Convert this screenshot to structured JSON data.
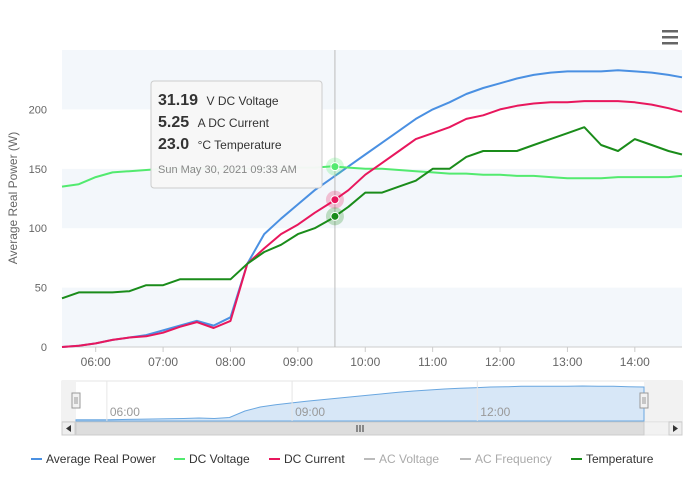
{
  "chart_data": {
    "type": "line",
    "ylabel": "Average Real Power (W)",
    "ylim": [
      0,
      250
    ],
    "y_ticks": [
      "0",
      "50",
      "100",
      "150",
      "200"
    ],
    "x_tick_labels": [
      "06:00",
      "07:00",
      "08:00",
      "09:00",
      "10:00",
      "11:00",
      "12:00",
      "13:00",
      "14:00"
    ],
    "x_range_hours": [
      5.5,
      14.7
    ],
    "grid": "horizontal bands",
    "legend_placement": "bottom",
    "series": [
      {
        "name": "Average Real Power",
        "color": "#4a90e2",
        "active": true,
        "x": [
          5.5,
          5.75,
          6.0,
          6.25,
          6.5,
          6.75,
          7.0,
          7.25,
          7.5,
          7.75,
          8.0,
          8.25,
          8.5,
          8.75,
          9.0,
          9.25,
          9.5,
          9.75,
          10.0,
          10.25,
          10.5,
          10.75,
          11.0,
          11.25,
          11.5,
          11.75,
          12.0,
          12.25,
          12.5,
          12.75,
          13.0,
          13.25,
          13.5,
          13.75,
          14.0,
          14.25,
          14.5,
          14.7
        ],
        "y": [
          0,
          1,
          3,
          6,
          8,
          10,
          14,
          18,
          22,
          18,
          25,
          70,
          95,
          108,
          120,
          132,
          142,
          152,
          162,
          172,
          182,
          192,
          200,
          206,
          213,
          218,
          222,
          226,
          229,
          231,
          232,
          232,
          232,
          233,
          232,
          231,
          229,
          227
        ]
      },
      {
        "name": "DC Voltage",
        "color": "#52ea6f",
        "active": true,
        "x": [
          5.5,
          5.75,
          6.0,
          6.25,
          6.5,
          6.75,
          7.0,
          7.25,
          7.5,
          7.75,
          8.0,
          8.25,
          8.5,
          8.75,
          9.0,
          9.25,
          9.5,
          9.75,
          10.0,
          10.25,
          10.5,
          10.75,
          11.0,
          11.25,
          11.5,
          11.75,
          12.0,
          12.25,
          12.5,
          12.75,
          13.0,
          13.25,
          13.5,
          13.75,
          14.0,
          14.25,
          14.5,
          14.7
        ],
        "y": [
          135,
          137,
          143,
          147,
          148,
          149,
          150,
          150,
          150,
          150,
          150,
          150,
          150,
          150,
          151,
          151,
          152,
          151,
          150,
          150,
          149,
          148,
          147,
          146,
          146,
          145,
          145,
          144,
          144,
          143,
          142,
          142,
          142,
          143,
          143,
          143,
          143,
          144
        ]
      },
      {
        "name": "DC Current",
        "color": "#e8175d",
        "active": true,
        "x": [
          5.5,
          5.75,
          6.0,
          6.25,
          6.5,
          6.75,
          7.0,
          7.25,
          7.5,
          7.75,
          8.0,
          8.25,
          8.5,
          8.75,
          9.0,
          9.25,
          9.5,
          9.75,
          10.0,
          10.25,
          10.5,
          10.75,
          11.0,
          11.25,
          11.5,
          11.75,
          12.0,
          12.25,
          12.5,
          12.75,
          13.0,
          13.25,
          13.5,
          13.75,
          14.0,
          14.25,
          14.5,
          14.7
        ],
        "y": [
          0,
          1,
          3,
          6,
          8,
          9,
          12,
          17,
          21,
          16,
          22,
          70,
          83,
          95,
          103,
          113,
          122,
          132,
          145,
          155,
          165,
          175,
          180,
          185,
          192,
          195,
          200,
          203,
          205,
          206,
          206,
          207,
          207,
          207,
          206,
          204,
          201,
          198
        ]
      },
      {
        "name": "AC Voltage",
        "color": "#bbbbbb",
        "active": false,
        "x": [],
        "y": []
      },
      {
        "name": "AC Frequency",
        "color": "#bbbbbb",
        "active": false,
        "x": [],
        "y": []
      },
      {
        "name": "Temperature",
        "color": "#1a8c1a",
        "active": true,
        "x": [
          5.5,
          5.75,
          6.0,
          6.25,
          6.5,
          6.75,
          7.0,
          7.25,
          7.5,
          7.75,
          8.0,
          8.25,
          8.5,
          8.75,
          9.0,
          9.25,
          9.5,
          9.75,
          10.0,
          10.25,
          10.5,
          10.75,
          11.0,
          11.25,
          11.5,
          11.75,
          12.0,
          12.25,
          12.5,
          12.75,
          13.0,
          13.25,
          13.5,
          13.75,
          14.0,
          14.25,
          14.5,
          14.7
        ],
        "y": [
          41,
          46,
          46,
          46,
          47,
          52,
          52,
          57,
          57,
          57,
          57,
          70,
          80,
          86,
          95,
          100,
          108,
          118,
          130,
          130,
          135,
          140,
          150,
          150,
          160,
          165,
          165,
          165,
          170,
          175,
          180,
          185,
          170,
          165,
          175,
          170,
          165,
          162
        ]
      }
    ],
    "navigator": {
      "x_tick_labels": [
        "06:00",
        "09:00",
        "12:00"
      ],
      "series_values": [
        5,
        5,
        5,
        6,
        7,
        8,
        9,
        10,
        12,
        10,
        14,
        40,
        56,
        65,
        72,
        79,
        85,
        91,
        97,
        103,
        109,
        115,
        120,
        124,
        128,
        131,
        133,
        136,
        137,
        139,
        139,
        139,
        139,
        140,
        139,
        139,
        137,
        136
      ]
    }
  },
  "tooltip": {
    "rows": [
      {
        "value": "31.19",
        "unit": "V DC Voltage"
      },
      {
        "value": "5.25",
        "unit": "A DC Current"
      },
      {
        "value": "23.0",
        "unit": "°C Temperature"
      }
    ],
    "date": "Sun May 30, 2021 09:33 AM",
    "crosshair_hour": 9.55
  },
  "legend": [
    {
      "label": "Average Real Power",
      "color": "#4a90e2",
      "active": true
    },
    {
      "label": "DC Voltage",
      "color": "#52ea6f",
      "active": true
    },
    {
      "label": "DC Current",
      "color": "#e8175d",
      "active": true
    },
    {
      "label": "AC Voltage",
      "color": "#bbbbbb",
      "active": false
    },
    {
      "label": "AC Frequency",
      "color": "#bbbbbb",
      "active": false
    },
    {
      "label": "Temperature",
      "color": "#1a8c1a",
      "active": true
    }
  ],
  "icons": {
    "menu": "hamburger-menu-icon",
    "scroll_left": "arrow-left-icon",
    "scroll_right": "arrow-right-icon",
    "grip": "grip-icon"
  }
}
